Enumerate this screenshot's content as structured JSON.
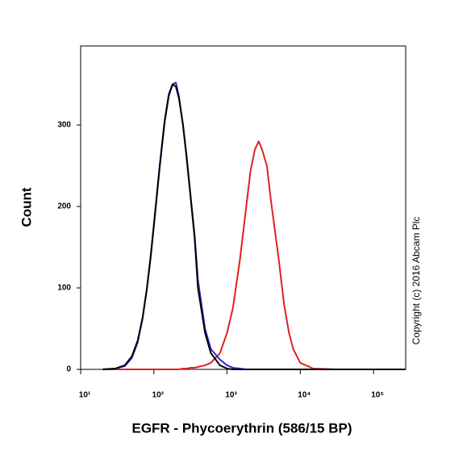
{
  "chart_data": {
    "type": "line",
    "xlabel": "EGFR - Phycoerythrin (586/15 BP)",
    "ylabel": "Count",
    "annotation": "Copyright (c) 2016 Abcam Plc",
    "xscale": "log",
    "xlim": [
      10,
      275000
    ],
    "ylim": [
      0,
      397
    ],
    "xticks": [
      {
        "value": 10,
        "label": "10¹"
      },
      {
        "value": 100,
        "label": "10²"
      },
      {
        "value": 1000,
        "label": "10³"
      },
      {
        "value": 10000,
        "label": "10⁴"
      },
      {
        "value": 100000,
        "label": "10⁵"
      }
    ],
    "yticks": [
      0,
      100,
      200,
      300
    ],
    "x": [
      20,
      30,
      40,
      50,
      60,
      70,
      80,
      90,
      100,
      120,
      140,
      160,
      180,
      200,
      220,
      250,
      280,
      320,
      360,
      400,
      500,
      600,
      800,
      1000,
      1200,
      1500,
      1800,
      2100,
      2400,
      2700,
      3000,
      3500,
      4000,
      5000,
      6000,
      7000,
      8000,
      10000,
      15000,
      30000,
      100000,
      275000
    ],
    "series": [
      {
        "color": "#e02020",
        "values": [
          0,
          0,
          0,
          0,
          0,
          0,
          0,
          0,
          0,
          0,
          0,
          0,
          0,
          0,
          0,
          1,
          1,
          2,
          2,
          3,
          5,
          8,
          20,
          45,
          75,
          135,
          195,
          245,
          270,
          280,
          270,
          250,
          205,
          140,
          80,
          45,
          25,
          8,
          1,
          0,
          0,
          0
        ]
      },
      {
        "color": "#2a2ad0",
        "values": [
          0,
          1,
          4,
          14,
          33,
          62,
          98,
          138,
          178,
          250,
          305,
          338,
          350,
          352,
          335,
          300,
          262,
          210,
          165,
          110,
          50,
          25,
          12,
          5,
          2,
          1,
          0,
          0,
          0,
          0,
          0,
          0,
          0,
          0,
          0,
          0,
          0,
          0,
          0,
          0,
          0,
          0
        ]
      },
      {
        "color": "#000000",
        "values": [
          0,
          1,
          5,
          16,
          35,
          63,
          98,
          136,
          176,
          248,
          303,
          336,
          350,
          347,
          333,
          300,
          260,
          208,
          162,
          100,
          45,
          20,
          5,
          1,
          0,
          0,
          0,
          0,
          0,
          0,
          0,
          0,
          0,
          0,
          0,
          0,
          0,
          0,
          0,
          0,
          0,
          0
        ]
      }
    ]
  }
}
